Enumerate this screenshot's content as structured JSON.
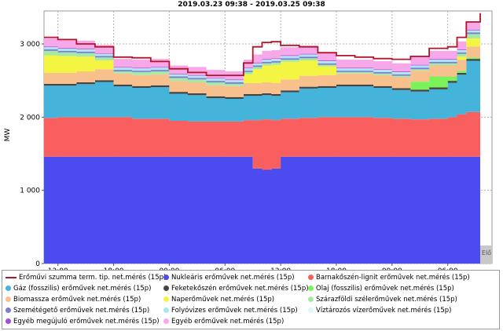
{
  "chart_data": {
    "type": "area",
    "title": "2019.03.23 09:38 - 2019.03.25 09:38",
    "ylabel": "MW",
    "ylim": [
      0,
      3450
    ],
    "yticks": [
      0,
      1000,
      2000,
      3000
    ],
    "ytick_labels": [
      "0",
      "1 000",
      "2 000",
      "3 000"
    ],
    "xlim": [
      10.5,
      57.5
    ],
    "xticks": [
      12,
      18,
      24,
      30,
      36,
      42,
      48,
      54
    ],
    "xtick_labels": [
      "12:00",
      "18:00",
      "00:00",
      "06:00",
      "12:00",
      "18:00",
      "00:00",
      "06:00"
    ],
    "end_label": "Elő",
    "grid": true,
    "x": [
      10.5,
      12,
      14,
      16,
      18,
      20,
      22,
      24,
      26,
      28,
      30,
      32,
      33,
      34,
      35,
      36,
      38,
      40,
      42,
      44,
      46,
      48,
      50,
      52,
      54,
      55,
      56,
      57.5
    ],
    "series": [
      {
        "name": "Nukleáris erőművek net.mérés (15p)",
        "color": "#4b4bf0",
        "values": [
          1460,
          1460,
          1460,
          1460,
          1460,
          1460,
          1460,
          1460,
          1460,
          1460,
          1460,
          1460,
          1300,
          1280,
          1300,
          1460,
          1460,
          1460,
          1460,
          1460,
          1460,
          1460,
          1460,
          1460,
          1460,
          1460,
          1460,
          1460
        ]
      },
      {
        "name": "Barnakőszén-lignit erőművek net.mérés (15p)",
        "color": "#fa5f5f",
        "values": [
          530,
          540,
          540,
          540,
          540,
          520,
          520,
          490,
          480,
          480,
          480,
          500,
          660,
          690,
          660,
          520,
          530,
          540,
          540,
          540,
          530,
          520,
          510,
          520,
          540,
          580,
          610,
          630
        ]
      },
      {
        "name": "Gáz (fosszilis) erőművek net.mérés (15p)",
        "color": "#45b4da",
        "values": [
          440,
          430,
          450,
          480,
          420,
          420,
          430,
          370,
          360,
          320,
          310,
          330,
          330,
          330,
          330,
          360,
          400,
          400,
          420,
          420,
          410,
          390,
          380,
          400,
          470,
          540,
          700,
          880
        ]
      },
      {
        "name": "Feketekőszén erőművek net.mérés (15p)",
        "color": "#444444",
        "values": [
          25,
          25,
          25,
          25,
          25,
          25,
          25,
          25,
          25,
          25,
          25,
          25,
          25,
          25,
          25,
          25,
          25,
          25,
          25,
          25,
          25,
          25,
          25,
          25,
          25,
          25,
          25,
          25
        ]
      },
      {
        "name": "Olaj (fosszilis) erőművek net.mérés (15p)",
        "color": "#7cf25a",
        "values": [
          0,
          0,
          0,
          0,
          0,
          0,
          0,
          0,
          0,
          0,
          0,
          0,
          0,
          0,
          0,
          0,
          0,
          0,
          0,
          0,
          0,
          0,
          110,
          150,
          60,
          30,
          20,
          10
        ]
      },
      {
        "name": "Biomassza erőművek net.mérés (15p)",
        "color": "#f7c08c",
        "values": [
          150,
          150,
          150,
          150,
          150,
          150,
          150,
          150,
          150,
          150,
          150,
          150,
          150,
          150,
          150,
          150,
          150,
          150,
          150,
          150,
          150,
          150,
          150,
          150,
          150,
          150,
          150,
          150
        ]
      },
      {
        "name": "Naperőművek net.mérés (15p)",
        "color": "#f4f442",
        "values": [
          240,
          230,
          200,
          120,
          0,
          0,
          0,
          0,
          0,
          0,
          0,
          120,
          190,
          230,
          250,
          240,
          210,
          120,
          0,
          0,
          0,
          0,
          0,
          0,
          0,
          40,
          110,
          130
        ]
      },
      {
        "name": "Szárazföldi szélerőművek net.mérés (15p)",
        "color": "#a6e8a6",
        "values": [
          60,
          50,
          50,
          40,
          30,
          40,
          40,
          40,
          40,
          40,
          30,
          30,
          30,
          30,
          30,
          30,
          30,
          20,
          20,
          20,
          20,
          20,
          20,
          30,
          30,
          40,
          60,
          70
        ]
      },
      {
        "name": "Szemétégető erőművek net.mérés (15p)",
        "color": "#7c7cd6",
        "values": [
          20,
          20,
          20,
          20,
          20,
          20,
          20,
          20,
          20,
          20,
          20,
          20,
          20,
          20,
          20,
          20,
          20,
          20,
          20,
          20,
          20,
          20,
          20,
          20,
          20,
          20,
          20,
          20
        ]
      },
      {
        "name": "Folyóvizes erőművek net.mérés (15p)",
        "color": "#a8e6f4",
        "values": [
          25,
          25,
          25,
          25,
          25,
          25,
          25,
          25,
          25,
          25,
          25,
          25,
          25,
          25,
          25,
          25,
          25,
          25,
          25,
          25,
          25,
          25,
          25,
          25,
          25,
          25,
          25,
          25
        ]
      },
      {
        "name": "Víztározós vízerőművek net.mérés (15p)",
        "color": "#e0f6fb",
        "values": [
          5,
          5,
          5,
          5,
          5,
          5,
          5,
          5,
          5,
          5,
          5,
          5,
          5,
          5,
          5,
          5,
          5,
          5,
          5,
          5,
          5,
          5,
          5,
          5,
          5,
          5,
          5,
          5
        ]
      },
      {
        "name": "Egyéb megújuló erőművek net.mérés (15p)",
        "color": "#a24bd6",
        "values": [
          10,
          10,
          10,
          10,
          10,
          10,
          10,
          10,
          10,
          10,
          10,
          10,
          10,
          10,
          10,
          10,
          10,
          10,
          10,
          10,
          10,
          10,
          10,
          10,
          10,
          10,
          10,
          10
        ]
      },
      {
        "name": "Egyéb erőművek net.mérés (15p)",
        "color": "#f7a8e8",
        "values": [
          110,
          110,
          110,
          110,
          110,
          110,
          110,
          110,
          110,
          110,
          110,
          110,
          110,
          110,
          110,
          110,
          110,
          110,
          110,
          110,
          110,
          110,
          110,
          110,
          110,
          110,
          110,
          110
        ]
      }
    ],
    "line_series": {
      "name": "Erőművi szumma term. tip. net.mérés (15p)",
      "color": "#b3142a",
      "values": [
        3090,
        3060,
        3000,
        2960,
        2820,
        2810,
        2760,
        2660,
        2610,
        2570,
        2570,
        2740,
        2960,
        3020,
        3030,
        2980,
        2960,
        2880,
        2840,
        2820,
        2800,
        2790,
        2830,
        2940,
        2960,
        3090,
        3300,
        3420
      ]
    }
  }
}
